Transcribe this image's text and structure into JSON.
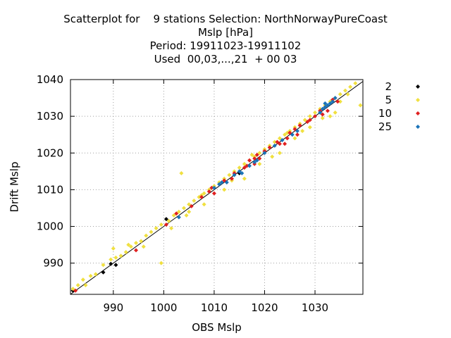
{
  "header": {
    "line1": "Scatterplot for    9 stations Selection: NorthNorwayPureCoast",
    "line2": "Mslp [hPa]",
    "line3": "Period: 19911023-19911102",
    "line4": "Used  00,03,...,21  + 00 03"
  },
  "chart_data": {
    "type": "scatter",
    "title": "Scatterplot for    9 stations Selection: NorthNorwayPureCoast",
    "xlabel": "OBS Mslp",
    "ylabel": "Drift Mslp",
    "xlim": [
      981.5,
      1039.5
    ],
    "ylim": [
      981.5,
      1040
    ],
    "xticks": [
      990,
      1000,
      1010,
      1020,
      1030
    ],
    "yticks": [
      990,
      1000,
      1010,
      1020,
      1030,
      1040
    ],
    "grid": true,
    "legend_position": "right",
    "diagonal_line": true,
    "series": [
      {
        "name": "2",
        "color": "#000000",
        "points": [
          [
            982,
            982.5
          ],
          [
            988,
            987.5
          ],
          [
            990.5,
            989.5
          ],
          [
            989.5,
            989.8
          ],
          [
            1000.5,
            1002
          ],
          [
            1015,
            1014.5
          ],
          [
            1020,
            1020.5
          ]
        ]
      },
      {
        "name": "5",
        "color": "#f0e040",
        "points": [
          [
            982,
            983
          ],
          [
            983,
            984
          ],
          [
            984,
            985.5
          ],
          [
            985.5,
            986.5
          ],
          [
            986.5,
            987
          ],
          [
            988,
            989.5
          ],
          [
            989.5,
            991
          ],
          [
            990.5,
            991.5
          ],
          [
            991.5,
            992
          ],
          [
            992.5,
            993
          ],
          [
            993.5,
            994.5
          ],
          [
            994.5,
            995.5
          ],
          [
            995.5,
            996
          ],
          [
            996.5,
            997.5
          ],
          [
            997.5,
            998.5
          ],
          [
            998.5,
            999.5
          ],
          [
            999.5,
            1000.5
          ],
          [
            1001,
            1001.5
          ],
          [
            1002,
            1003
          ],
          [
            1003,
            1004
          ],
          [
            1004,
            1005
          ],
          [
            1005,
            1006
          ],
          [
            1006,
            1007
          ],
          [
            1007,
            1008
          ],
          [
            1008,
            1009
          ],
          [
            1009,
            1010
          ],
          [
            1010,
            1011
          ],
          [
            1011,
            1012
          ],
          [
            1012,
            1013
          ],
          [
            1013,
            1014
          ],
          [
            1014,
            1015
          ],
          [
            1015,
            1016
          ],
          [
            1016,
            1017
          ],
          [
            1017,
            1018
          ],
          [
            1018,
            1019
          ],
          [
            1019,
            1020
          ],
          [
            1020,
            1021
          ],
          [
            1021,
            1022
          ],
          [
            1022,
            1023
          ],
          [
            1023,
            1024
          ],
          [
            1024,
            1025
          ],
          [
            1025,
            1026
          ],
          [
            1026,
            1027
          ],
          [
            1027,
            1028
          ],
          [
            1028,
            1029
          ],
          [
            1029,
            1030
          ],
          [
            1030,
            1031
          ],
          [
            1031,
            1032
          ],
          [
            1032,
            1033
          ],
          [
            1033,
            1034
          ],
          [
            1034,
            1035
          ],
          [
            1035,
            1036
          ],
          [
            1036,
            1037
          ],
          [
            1037,
            1038
          ],
          [
            1038,
            1039
          ],
          [
            1039,
            1033
          ],
          [
            999.5,
            990
          ],
          [
            1003.5,
            1014.5
          ],
          [
            990,
            994
          ],
          [
            993,
            995
          ],
          [
            1005,
            1004
          ],
          [
            1008,
            1006
          ],
          [
            1012,
            1010
          ],
          [
            1016,
            1013
          ],
          [
            1019,
            1017
          ],
          [
            1023,
            1020
          ],
          [
            1026,
            1024
          ],
          [
            1029,
            1027
          ],
          [
            1033,
            1030
          ],
          [
            1035,
            1034
          ],
          [
            984.5,
            984
          ],
          [
            996,
            994.5
          ],
          [
            1001.5,
            999.5
          ],
          [
            1004.5,
            1003
          ],
          [
            1007.5,
            1008.5
          ],
          [
            1013.5,
            1012.5
          ],
          [
            1017.5,
            1019.5
          ],
          [
            1021.5,
            1019
          ],
          [
            1024.5,
            1025.5
          ],
          [
            1027.5,
            1026
          ],
          [
            1031.5,
            1029.5
          ],
          [
            1034,
            1031
          ],
          [
            1036.5,
            1036
          ]
        ]
      },
      {
        "name": "10",
        "color": "#e02020",
        "points": [
          [
            982.5,
            982.5
          ],
          [
            994.5,
            993.5
          ],
          [
            1000.5,
            1000.5
          ],
          [
            1002.5,
            1003.5
          ],
          [
            1005.5,
            1005.5
          ],
          [
            1007.5,
            1008
          ],
          [
            1009,
            1009.5
          ],
          [
            1009.5,
            1010.5
          ],
          [
            1012,
            1012.5
          ],
          [
            1014,
            1014.5
          ],
          [
            1016.5,
            1016.5
          ],
          [
            1017,
            1018
          ],
          [
            1018,
            1018.5
          ],
          [
            1018.5,
            1019.5
          ],
          [
            1019,
            1018.5
          ],
          [
            1020,
            1020.5
          ],
          [
            1021,
            1021.5
          ],
          [
            1023,
            1022.5
          ],
          [
            1024.5,
            1024
          ],
          [
            1025,
            1025.5
          ],
          [
            1026,
            1026.5
          ],
          [
            1027,
            1027.5
          ],
          [
            1028.5,
            1028.5
          ],
          [
            1030,
            1030
          ],
          [
            1031,
            1031.5
          ],
          [
            1031.5,
            1030.5
          ],
          [
            1032,
            1032.5
          ],
          [
            1032.5,
            1031.5
          ],
          [
            1033.5,
            1034.5
          ],
          [
            1034.5,
            1034
          ],
          [
            1022.5,
            1023
          ],
          [
            1024,
            1022.5
          ],
          [
            1018,
            1017
          ],
          [
            1016,
            1016
          ],
          [
            1010,
            1009
          ],
          [
            1013.5,
            1013
          ],
          [
            1026.5,
            1025
          ],
          [
            1029,
            1029
          ]
        ]
      },
      {
        "name": "25",
        "color": "#1a73b8",
        "points": [
          [
            1003,
            1002.5
          ],
          [
            1010,
            1010.5
          ],
          [
            1011,
            1011.5
          ],
          [
            1011.5,
            1012
          ],
          [
            1012.5,
            1012
          ],
          [
            1014,
            1014
          ],
          [
            1015,
            1015
          ],
          [
            1015.5,
            1014.5
          ],
          [
            1017,
            1016.5
          ],
          [
            1018,
            1017.5
          ],
          [
            1018.5,
            1018
          ],
          [
            1020,
            1020
          ],
          [
            1022,
            1022
          ],
          [
            1023.5,
            1023.5
          ],
          [
            1025.5,
            1025
          ],
          [
            1026.5,
            1026
          ],
          [
            1031.5,
            1032
          ],
          [
            1032,
            1032.5
          ],
          [
            1032.5,
            1033
          ],
          [
            1033,
            1033.5
          ],
          [
            1033.5,
            1034
          ],
          [
            1034,
            1035
          ],
          [
            1032,
            1033.5
          ],
          [
            1031,
            1031
          ]
        ]
      }
    ]
  }
}
